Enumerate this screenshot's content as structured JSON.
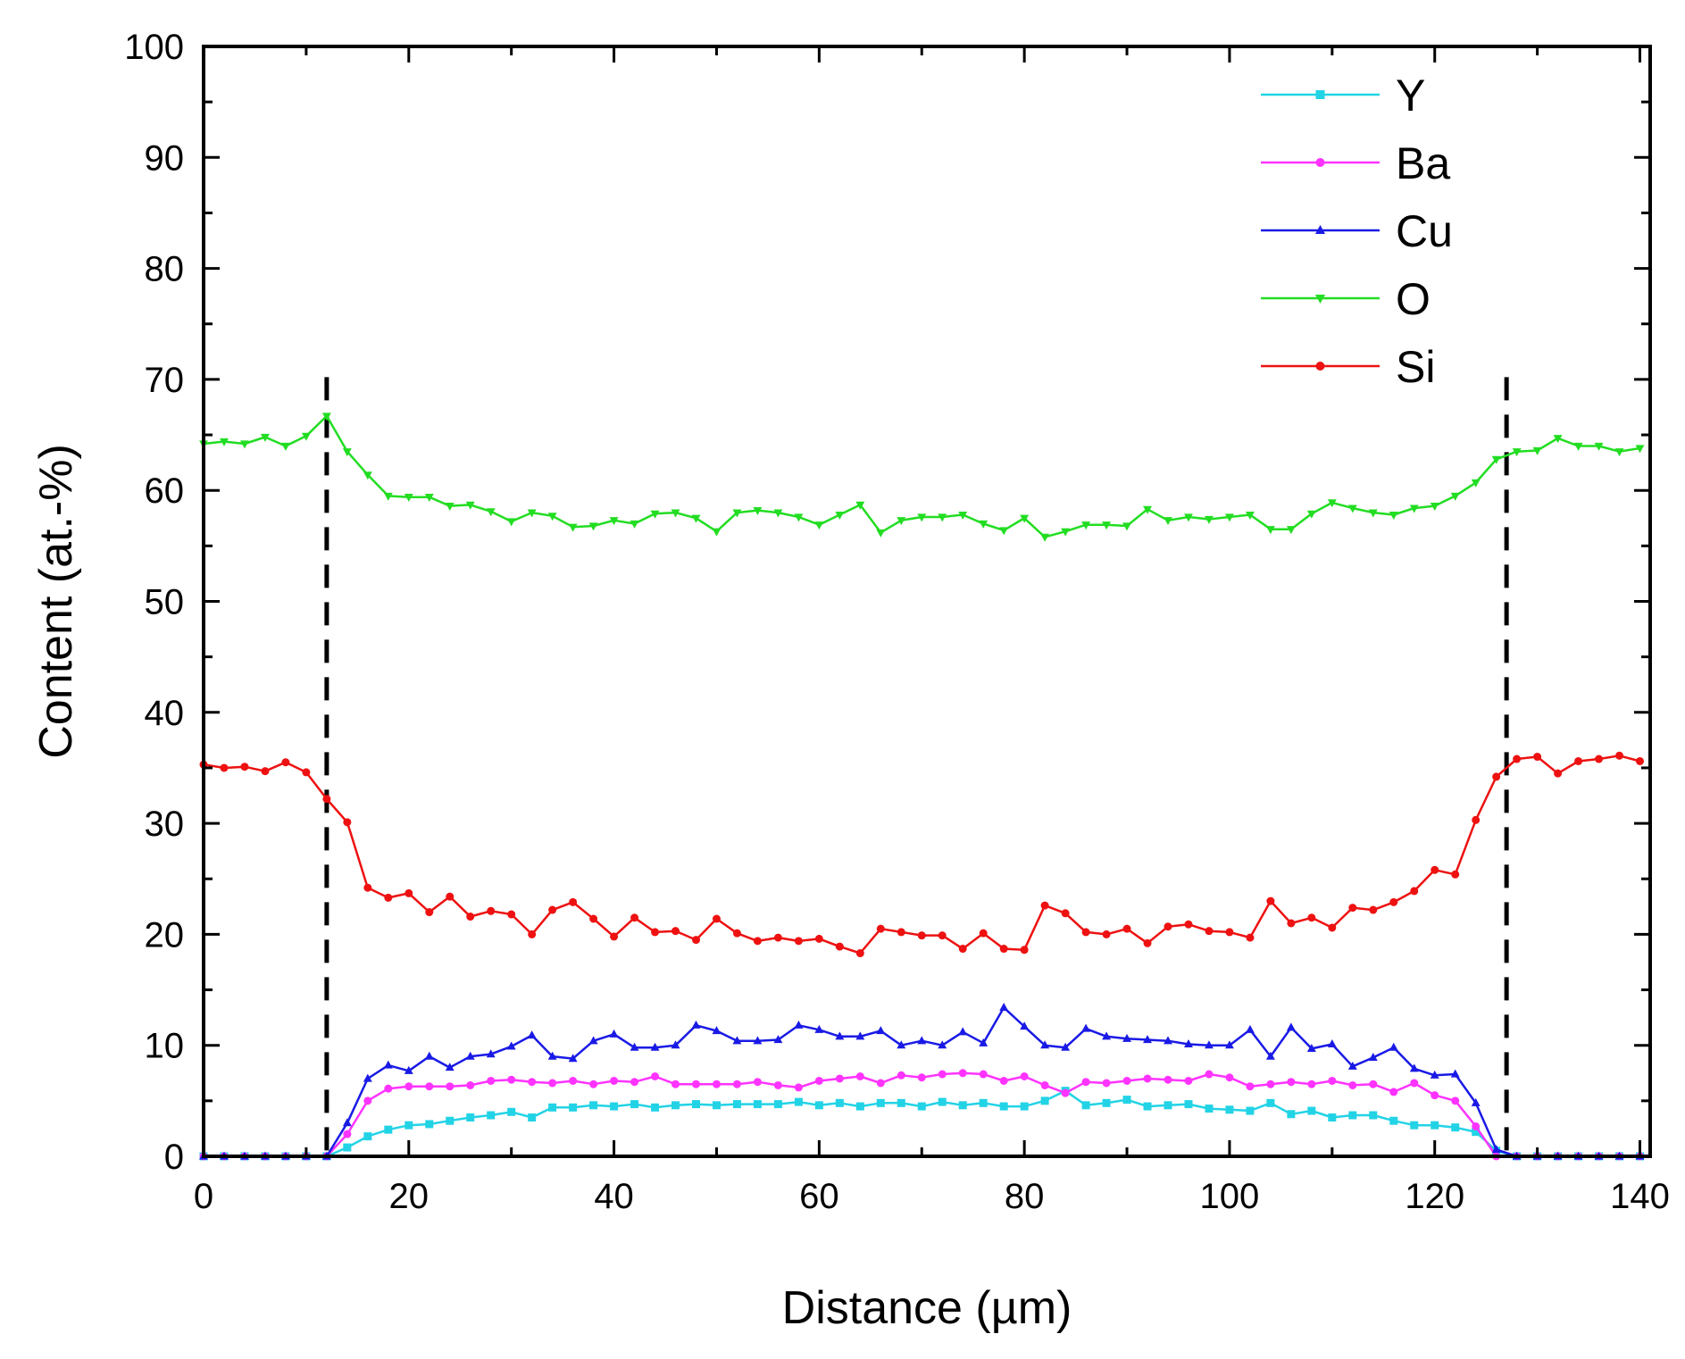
{
  "chart_data": {
    "type": "line",
    "title": "",
    "xlabel": "Distance (µm)",
    "ylabel": "Content (at.-%)",
    "xlim": [
      0,
      141
    ],
    "ylim": [
      0,
      100
    ],
    "xticks": [
      0,
      20,
      40,
      60,
      80,
      100,
      120,
      140
    ],
    "yticks": [
      0,
      10,
      20,
      30,
      40,
      50,
      60,
      70,
      80,
      90,
      100
    ],
    "x_tick_labels": [
      "0",
      "20",
      "40",
      "60",
      "80",
      "100",
      "120",
      "140"
    ],
    "y_tick_labels": [
      "0",
      "10",
      "20",
      "30",
      "40",
      "50",
      "60",
      "70",
      "80",
      "90",
      "100"
    ],
    "grid": false,
    "legend_position": "top-right",
    "x": [
      0,
      2,
      4,
      6,
      8,
      10,
      12,
      14,
      16,
      18,
      20,
      22,
      24,
      26,
      28,
      30,
      32,
      34,
      36,
      38,
      40,
      42,
      44,
      46,
      48,
      50,
      52,
      54,
      56,
      58,
      60,
      62,
      64,
      66,
      68,
      70,
      72,
      74,
      76,
      78,
      80,
      82,
      84,
      86,
      88,
      90,
      92,
      94,
      96,
      98,
      100,
      102,
      104,
      106,
      108,
      110,
      112,
      114,
      116,
      118,
      120,
      122,
      124,
      126,
      128,
      130,
      132,
      134,
      136,
      138,
      140
    ],
    "series": [
      {
        "name": "Y",
        "color": "#22d3e6",
        "marker": "square",
        "values": [
          0,
          0,
          0,
          0,
          0,
          0,
          0,
          0.8,
          1.8,
          2.4,
          2.8,
          2.9,
          3.2,
          3.5,
          3.7,
          4.0,
          3.5,
          4.4,
          4.4,
          4.6,
          4.5,
          4.7,
          4.4,
          4.6,
          4.7,
          4.6,
          4.7,
          4.7,
          4.7,
          4.9,
          4.6,
          4.8,
          4.5,
          4.8,
          4.8,
          4.5,
          4.9,
          4.6,
          4.8,
          4.5,
          4.5,
          5.0,
          5.9,
          4.6,
          4.8,
          5.1,
          4.5,
          4.6,
          4.7,
          4.3,
          4.2,
          4.1,
          4.8,
          3.8,
          4.1,
          3.5,
          3.7,
          3.7,
          3.2,
          2.8,
          2.8,
          2.6,
          2.2,
          0.5,
          0,
          0,
          0,
          0,
          0,
          0,
          0
        ]
      },
      {
        "name": "Ba",
        "color": "#ff33ff",
        "marker": "circle",
        "values": [
          0,
          0,
          0,
          0,
          0,
          0,
          0,
          2.0,
          5.0,
          6.1,
          6.3,
          6.3,
          6.3,
          6.4,
          6.8,
          6.9,
          6.7,
          6.6,
          6.8,
          6.5,
          6.8,
          6.7,
          7.2,
          6.5,
          6.5,
          6.5,
          6.5,
          6.7,
          6.4,
          6.2,
          6.8,
          7.0,
          7.2,
          6.6,
          7.3,
          7.1,
          7.4,
          7.5,
          7.4,
          6.8,
          7.2,
          6.4,
          5.7,
          6.7,
          6.6,
          6.8,
          7.0,
          6.9,
          6.8,
          7.4,
          7.1,
          6.3,
          6.5,
          6.7,
          6.5,
          6.8,
          6.4,
          6.5,
          5.8,
          6.6,
          5.5,
          5.0,
          2.7,
          0,
          0,
          0,
          0,
          0,
          0,
          0,
          0
        ]
      },
      {
        "name": "Cu",
        "color": "#1a1ae6",
        "marker": "triangle-up",
        "values": [
          0,
          0,
          0,
          0,
          0,
          0,
          0,
          3.0,
          7.0,
          8.2,
          7.7,
          9.0,
          8.0,
          9.0,
          9.2,
          9.9,
          10.9,
          9.0,
          8.8,
          10.4,
          11.0,
          9.8,
          9.8,
          10.0,
          11.8,
          11.3,
          10.4,
          10.4,
          10.5,
          11.8,
          11.4,
          10.8,
          10.8,
          11.3,
          10.0,
          10.4,
          10.0,
          11.2,
          10.2,
          13.4,
          11.7,
          10.0,
          9.8,
          11.5,
          10.8,
          10.6,
          10.5,
          10.4,
          10.1,
          10.0,
          10.0,
          11.4,
          9.0,
          11.6,
          9.7,
          10.1,
          8.1,
          8.9,
          9.8,
          7.9,
          7.3,
          7.4,
          4.8,
          0.6,
          0,
          0,
          0,
          0,
          0,
          0,
          0
        ]
      },
      {
        "name": "O",
        "color": "#22dd22",
        "marker": "triangle-down",
        "values": [
          64.2,
          64.4,
          64.2,
          64.8,
          64.0,
          64.9,
          66.7,
          63.5,
          61.4,
          59.5,
          59.4,
          59.4,
          58.6,
          58.7,
          58.1,
          57.2,
          58.0,
          57.7,
          56.7,
          56.8,
          57.3,
          57.0,
          57.9,
          58.0,
          57.5,
          56.3,
          58.0,
          58.2,
          58.0,
          57.6,
          56.9,
          57.8,
          58.7,
          56.2,
          57.3,
          57.6,
          57.6,
          57.8,
          57.0,
          56.4,
          57.5,
          55.8,
          56.3,
          56.9,
          56.9,
          56.8,
          58.3,
          57.3,
          57.6,
          57.4,
          57.6,
          57.8,
          56.5,
          56.5,
          57.9,
          58.9,
          58.4,
          58.0,
          57.8,
          58.4,
          58.6,
          59.5,
          60.7,
          62.8,
          63.5,
          63.6,
          64.7,
          64.0,
          64.0,
          63.5,
          63.8
        ]
      },
      {
        "name": "Si",
        "color": "#ee1111",
        "marker": "circle",
        "values": [
          35.3,
          35.0,
          35.1,
          34.7,
          35.5,
          34.6,
          32.2,
          30.1,
          24.2,
          23.3,
          23.7,
          22.0,
          23.4,
          21.6,
          22.1,
          21.8,
          20.0,
          22.2,
          22.9,
          21.4,
          19.8,
          21.5,
          20.2,
          20.3,
          19.5,
          21.4,
          20.1,
          19.4,
          19.7,
          19.4,
          19.6,
          18.9,
          18.3,
          20.5,
          20.2,
          19.9,
          19.9,
          18.7,
          20.1,
          18.7,
          18.6,
          22.6,
          21.9,
          20.2,
          20.0,
          20.5,
          19.2,
          20.7,
          20.9,
          20.3,
          20.2,
          19.7,
          23.0,
          21.0,
          21.5,
          20.6,
          22.4,
          22.2,
          22.9,
          23.9,
          25.8,
          25.4,
          30.3,
          34.2,
          35.8,
          36.0,
          34.5,
          35.6,
          35.8,
          36.1,
          35.6
        ]
      }
    ],
    "annotations": [
      {
        "type": "vertical-dashed-line",
        "x": 12
      },
      {
        "type": "vertical-dashed-line",
        "x": 127
      }
    ]
  }
}
